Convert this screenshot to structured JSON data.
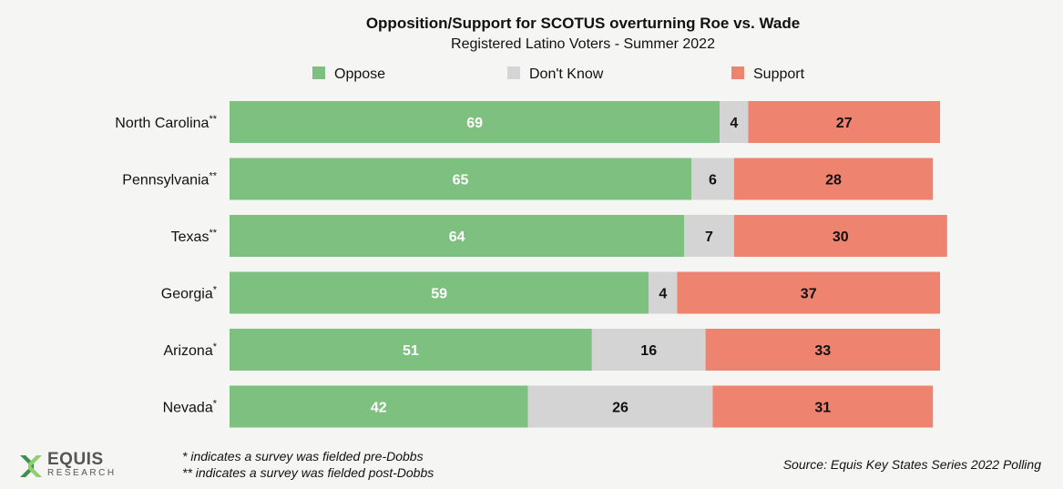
{
  "chart_data": {
    "type": "bar",
    "orientation": "horizontal",
    "stacked": true,
    "title": "Opposition/Support for SCOTUS overturning Roe vs. Wade",
    "subtitle": "Registered Latino Voters - Summer 2022",
    "categories": [
      "North Carolina**",
      "Pennsylvania**",
      "Texas**",
      "Georgia*",
      "Arizona*",
      "Nevada*"
    ],
    "series": [
      {
        "name": "Oppose",
        "color": "#7dc07f",
        "label_color": "#ffffff",
        "values": [
          69,
          65,
          64,
          59,
          51,
          42
        ]
      },
      {
        "name": "Don't Know",
        "color": "#d4d4d4",
        "label_color": "#111111",
        "values": [
          4,
          6,
          7,
          4,
          16,
          26
        ]
      },
      {
        "name": "Support",
        "color": "#ee8370",
        "label_color": "#111111",
        "values": [
          27,
          28,
          30,
          37,
          33,
          31
        ]
      }
    ],
    "xlim": [
      0,
      100
    ],
    "grid": false,
    "legend": "top-center"
  },
  "footnotes": {
    "single": "*  indicates a survey was fielded pre-Dobbs",
    "double": "** indicates a survey was fielded post-Dobbs"
  },
  "source": "Source: Equis Key States Series 2022 Polling",
  "logo": {
    "word": "EQUIS",
    "sub": "RESEARCH",
    "icon": "equis-x-icon",
    "colors": [
      "#3f8f4f",
      "#8fcf6f"
    ]
  }
}
